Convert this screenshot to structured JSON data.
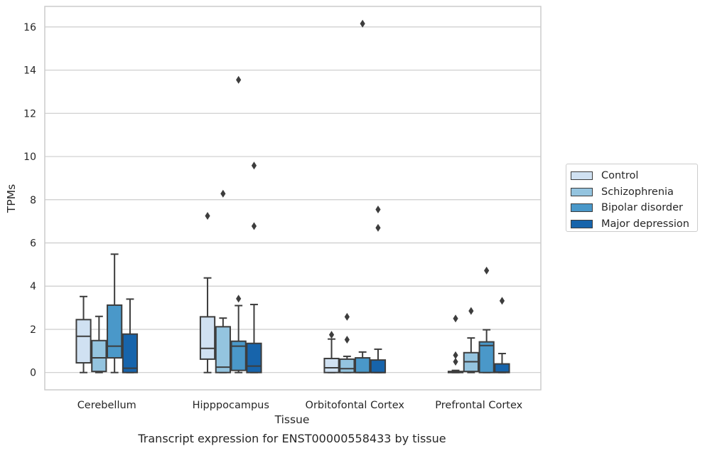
{
  "chart_data": {
    "type": "box",
    "title": "Transcript expression for ENST00000558433 by tissue",
    "xlabel": "Tissue",
    "ylabel": "TPMs",
    "ylim": [
      -0.8,
      16.95
    ],
    "yticks": [
      0,
      2,
      4,
      6,
      8,
      10,
      12,
      14,
      16
    ],
    "grid": "horizontal",
    "legend_position": "right",
    "categories": [
      "Cerebellum",
      "Hipppocampus",
      "Orbitofontal Cortex",
      "Prefrontal Cortex"
    ],
    "series": [
      {
        "name": "Control",
        "color": "#d0e1f2",
        "boxes": [
          {
            "whislo": 0.0,
            "q1": 0.45,
            "med": 1.68,
            "q3": 2.45,
            "whishi": 3.52,
            "fliers": []
          },
          {
            "whislo": 0.0,
            "q1": 0.62,
            "med": 1.12,
            "q3": 2.58,
            "whishi": 4.38,
            "fliers": [
              7.25
            ]
          },
          {
            "whislo": 0.0,
            "q1": 0.0,
            "med": 0.22,
            "q3": 0.65,
            "whishi": 1.55,
            "fliers": [
              1.75
            ]
          },
          {
            "whislo": 0.0,
            "q1": 0.0,
            "med": 0.02,
            "q3": 0.05,
            "whishi": 0.1,
            "fliers": [
              0.5,
              0.8,
              2.5
            ]
          }
        ]
      },
      {
        "name": "Schizophrenia",
        "color": "#94c4df",
        "boxes": [
          {
            "whislo": 0.0,
            "q1": 0.05,
            "med": 0.68,
            "q3": 1.48,
            "whishi": 2.6,
            "fliers": []
          },
          {
            "whislo": 0.0,
            "q1": 0.0,
            "med": 0.25,
            "q3": 2.12,
            "whishi": 2.52,
            "fliers": [
              8.28
            ]
          },
          {
            "whislo": 0.0,
            "q1": 0.0,
            "med": 0.18,
            "q3": 0.62,
            "whishi": 0.75,
            "fliers": [
              1.52,
              2.58
            ]
          },
          {
            "whislo": 0.0,
            "q1": 0.05,
            "med": 0.5,
            "q3": 0.92,
            "whishi": 1.6,
            "fliers": [
              2.85
            ]
          }
        ]
      },
      {
        "name": "Bipolar disorder",
        "color": "#4a98c9",
        "boxes": [
          {
            "whislo": 0.0,
            "q1": 0.68,
            "med": 1.22,
            "q3": 3.12,
            "whishi": 5.48,
            "fliers": []
          },
          {
            "whislo": 0.0,
            "q1": 0.1,
            "med": 1.22,
            "q3": 1.45,
            "whishi": 3.1,
            "fliers": [
              3.42,
              13.55
            ]
          },
          {
            "whislo": 0.0,
            "q1": 0.0,
            "med": 0.0,
            "q3": 0.68,
            "whishi": 0.95,
            "fliers": [
              16.15
            ]
          },
          {
            "whislo": 0.0,
            "q1": 0.0,
            "med": 1.25,
            "q3": 1.42,
            "whishi": 1.98,
            "fliers": [
              4.72
            ]
          }
        ]
      },
      {
        "name": "Major depression",
        "color": "#1764ab",
        "boxes": [
          {
            "whislo": 0.0,
            "q1": 0.0,
            "med": 0.2,
            "q3": 1.78,
            "whishi": 3.4,
            "fliers": []
          },
          {
            "whislo": 0.0,
            "q1": 0.0,
            "med": 0.3,
            "q3": 1.35,
            "whishi": 3.15,
            "fliers": [
              6.78,
              9.58
            ]
          },
          {
            "whislo": 0.0,
            "q1": 0.0,
            "med": 0.0,
            "q3": 0.58,
            "whishi": 1.08,
            "fliers": [
              6.7,
              7.55
            ]
          },
          {
            "whislo": 0.0,
            "q1": 0.0,
            "med": 0.02,
            "q3": 0.4,
            "whishi": 0.88,
            "fliers": [
              3.32
            ]
          }
        ]
      }
    ]
  }
}
